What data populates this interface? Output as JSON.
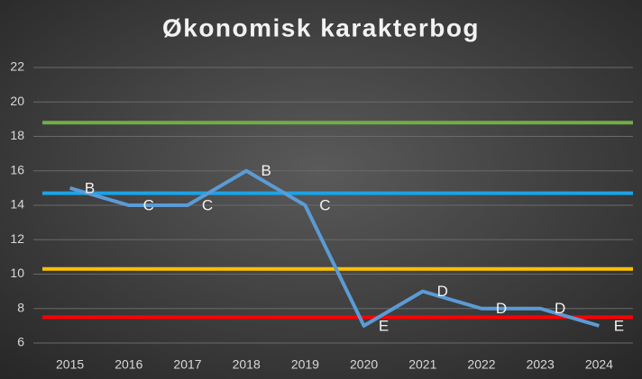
{
  "chart_data": {
    "type": "line",
    "title": "Økonomisk karakterbog",
    "categories": [
      "2015",
      "2016",
      "2017",
      "2018",
      "2019",
      "2020",
      "2021",
      "2022",
      "2023",
      "2024"
    ],
    "series": [
      {
        "color": "#5b9bd5",
        "values": [
          15,
          14,
          14,
          16,
          14,
          7,
          9,
          8,
          8,
          7
        ],
        "value_labels": [
          "B",
          "C",
          "C",
          "B",
          "C",
          "E",
          "D",
          "D",
          "D",
          "E"
        ]
      }
    ],
    "reference_lines": [
      {
        "value": 18.8,
        "color": "#70ad47"
      },
      {
        "value": 14.7,
        "color": "#1aa3e8"
      },
      {
        "value": 10.3,
        "color": "#ffc000"
      },
      {
        "value": 7.5,
        "color": "#ff0000"
      }
    ],
    "ylim": [
      6,
      22
    ],
    "yticks": [
      6,
      8,
      10,
      12,
      14,
      16,
      18,
      20,
      22
    ],
    "grid": true
  }
}
